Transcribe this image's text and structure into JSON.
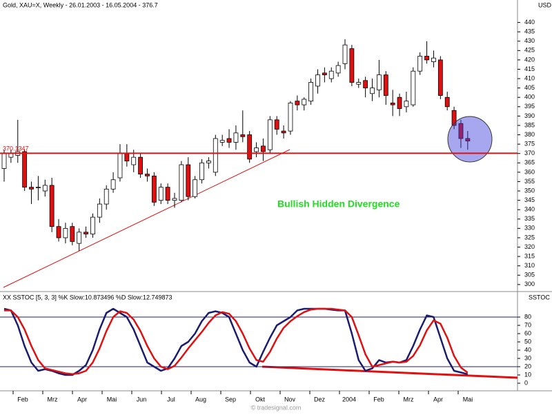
{
  "chart_data": {
    "type": "candlestick",
    "title": "Gold, XAU=X, Weekly - 26.01.2003 - 16.05.2004 - 376.7",
    "y_axis_label": "USD",
    "hline": {
      "value": 370.1347,
      "label": "370.1347"
    },
    "annotation": "Bullish Hidden Divergence",
    "watermark": "© tradesignal.com",
    "x_labels": [
      "Feb",
      "Mrz",
      "Apr",
      "Mai",
      "Jun",
      "Jul",
      "Aug",
      "Sep",
      "Okt",
      "Nov",
      "Dez",
      "2004",
      "Feb",
      "Mrz",
      "Apr",
      "Mai"
    ],
    "open": [
      362,
      368,
      369,
      371,
      352,
      352,
      350,
      353,
      331,
      325,
      331,
      322,
      328,
      327,
      336,
      343,
      351,
      357,
      370,
      364,
      368,
      359,
      358,
      345,
      352,
      345,
      345,
      364,
      347,
      356,
      365,
      360,
      376,
      378,
      376,
      380,
      380,
      371,
      374,
      372,
      388,
      382,
      382,
      398,
      396,
      398,
      406,
      413,
      410,
      413,
      418,
      426,
      407,
      409,
      402,
      404,
      412,
      397,
      400,
      395,
      396,
      414,
      422,
      419,
      420,
      400,
      393,
      386,
      378
    ],
    "high": [
      372,
      372,
      388,
      372,
      355,
      358,
      356,
      357,
      335,
      333,
      333,
      330,
      331,
      338,
      346,
      353,
      360,
      375,
      375,
      372,
      370,
      362,
      360,
      354,
      354,
      349,
      366,
      368,
      358,
      367,
      368,
      380,
      380,
      383,
      385,
      393,
      382,
      376,
      378,
      390,
      390,
      385,
      398,
      401,
      400,
      410,
      415,
      416,
      416,
      419,
      431,
      428,
      410,
      411,
      410,
      420,
      414,
      404,
      402,
      403,
      416,
      424,
      430,
      425,
      422,
      403,
      395,
      388,
      382
    ],
    "low": [
      355,
      365,
      365,
      350,
      343,
      345,
      347,
      328,
      323,
      322,
      321,
      318,
      325,
      325,
      333,
      340,
      349,
      355,
      363,
      360,
      357,
      355,
      342,
      343,
      343,
      341,
      344,
      345,
      346,
      354,
      362,
      358,
      374,
      373,
      372,
      376,
      365,
      368,
      366,
      370,
      380,
      378,
      380,
      393,
      393,
      396,
      402,
      408,
      408,
      411,
      415,
      406,
      405,
      400,
      398,
      400,
      396,
      390,
      390,
      392,
      395,
      412,
      418,
      416,
      399,
      393,
      383,
      373,
      372
    ],
    "close": [
      370,
      370,
      371,
      352,
      351,
      352,
      353,
      331,
      325,
      330,
      323,
      328,
      327,
      336,
      343,
      351,
      356,
      370,
      366,
      368,
      359,
      358,
      344,
      352,
      345,
      346,
      364,
      347,
      356,
      365,
      366,
      378,
      377,
      376,
      381,
      379,
      367,
      373,
      371,
      388,
      383,
      381,
      397,
      396,
      399,
      408,
      412,
      412,
      414,
      417,
      428,
      408,
      408,
      405,
      405,
      412,
      401,
      396,
      394,
      398,
      414,
      422,
      420,
      421,
      401,
      395,
      385,
      378,
      376.7
    ],
    "yticks": [
      300,
      305,
      310,
      315,
      320,
      325,
      330,
      335,
      340,
      345,
      350,
      355,
      360,
      365,
      370,
      375,
      380,
      385,
      390,
      395,
      400,
      405,
      410,
      415,
      420,
      425,
      430,
      435,
      440
    ],
    "ylim": [
      297,
      445
    ],
    "indicator": {
      "title": "XX SSTOC [5, 3, 3] %K Slow:10.873496 %D Slow:12.749873",
      "axis_label": "SSTOC",
      "series": [
        {
          "name": "%K Slow",
          "color": "#1c1c6e",
          "values": [
            90,
            88,
            70,
            45,
            25,
            15,
            17,
            15,
            12,
            10,
            10,
            15,
            22,
            40,
            65,
            85,
            90,
            85,
            80,
            65,
            45,
            25,
            20,
            15,
            18,
            30,
            45,
            50,
            60,
            75,
            85,
            87,
            85,
            80,
            60,
            40,
            25,
            20,
            38,
            55,
            70,
            75,
            80,
            88,
            90,
            90,
            90,
            90,
            89,
            88,
            88,
            60,
            28,
            15,
            18,
            28,
            25,
            26,
            25,
            28,
            45,
            65,
            82,
            80,
            55,
            30,
            15,
            13,
            10.873496
          ]
        },
        {
          "name": "%D Slow",
          "color": "#e01010",
          "values": [
            88,
            88,
            80,
            65,
            45,
            28,
            18,
            16,
            14,
            12,
            11,
            12,
            15,
            25,
            42,
            63,
            80,
            87,
            85,
            77,
            63,
            45,
            30,
            20,
            17,
            21,
            31,
            42,
            52,
            62,
            73,
            82,
            86,
            84,
            75,
            60,
            42,
            28,
            26,
            38,
            54,
            67,
            75,
            81,
            86,
            89,
            90,
            90,
            90,
            89,
            88,
            80,
            58,
            35,
            20,
            22,
            24,
            26,
            25,
            26,
            33,
            46,
            64,
            76,
            72,
            55,
            33,
            19,
            12.749873
          ]
        }
      ],
      "levels": [
        20,
        80
      ],
      "yticks": [
        0,
        10,
        20,
        30,
        40,
        50,
        60,
        70,
        80
      ],
      "ylim": [
        -7.5,
        109.2
      ]
    }
  }
}
